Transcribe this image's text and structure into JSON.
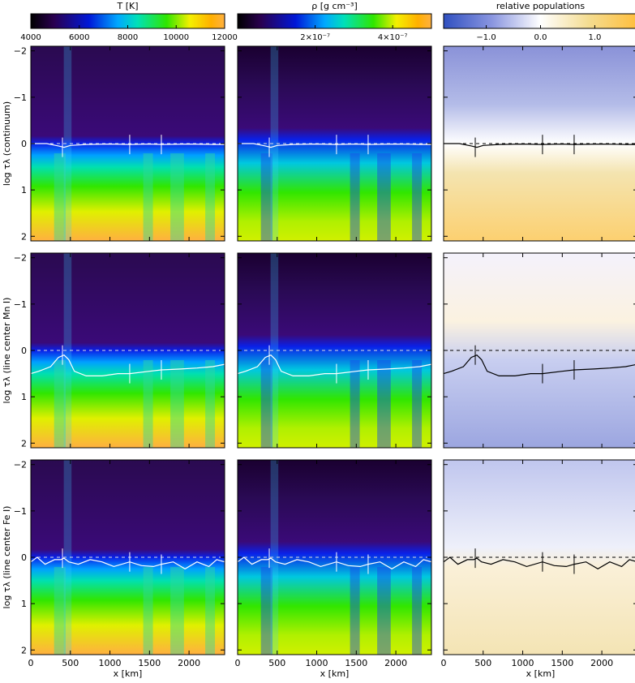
{
  "figure": {
    "colorbars": [
      {
        "label": "T [K]",
        "ticks": [
          "4000",
          "6000",
          "8000",
          "10000",
          "12000"
        ],
        "colormap": "thermal"
      },
      {
        "label": "ρ [g cm⁻³]",
        "ticks": [
          "2×10⁻⁷",
          "4×10⁻⁷"
        ],
        "colormap": "thermal"
      },
      {
        "label": "relative populations",
        "ticks": [
          "−1.0",
          "0.0",
          "1.0"
        ],
        "colormap": "diverging"
      }
    ],
    "row_ylabels": [
      "log τλ (continuum)",
      "log τλ (line center Mn I)",
      "log τλ (line center Fe I)"
    ],
    "xlabel": "x [km]",
    "xticks": [
      "0",
      "500",
      "1000",
      "1500",
      "2000"
    ],
    "yticks": [
      "−2",
      "−1",
      "0",
      "1",
      "2"
    ]
  },
  "chart_data": {
    "type": "heatmap",
    "x_range": [
      0,
      2450
    ],
    "y_range": [
      -2.1,
      2.1
    ],
    "y_inverted": true,
    "marker_x": [
      400,
      1250,
      1650
    ],
    "rows": [
      {
        "ylabel": "log τλ (continuum)",
        "tau_unity_curve": {
          "x": [
            0,
            200,
            350,
            420,
            500,
            700,
            1000,
            1250,
            1500,
            1650,
            2000,
            2300,
            2450
          ],
          "y": [
            0.0,
            0.0,
            0.05,
            0.08,
            0.04,
            0.02,
            0.01,
            0.02,
            0.01,
            0.02,
            0.01,
            0.02,
            0.02
          ]
        }
      },
      {
        "ylabel": "log τλ (line center Mn I)",
        "tau_unity_curve": {
          "x": [
            0,
            100,
            250,
            350,
            420,
            480,
            550,
            700,
            900,
            1100,
            1250,
            1500,
            1650,
            1900,
            2100,
            2300,
            2450
          ],
          "y": [
            0.5,
            0.45,
            0.35,
            0.15,
            0.1,
            0.2,
            0.45,
            0.55,
            0.55,
            0.5,
            0.5,
            0.45,
            0.42,
            0.4,
            0.38,
            0.35,
            0.3
          ]
        }
      },
      {
        "ylabel": "log τλ (line center Fe I)",
        "tau_unity_curve": {
          "x": [
            0,
            80,
            180,
            300,
            380,
            420,
            480,
            600,
            750,
            900,
            1050,
            1250,
            1400,
            1550,
            1650,
            1800,
            1950,
            2100,
            2250,
            2350,
            2450
          ],
          "y": [
            0.1,
            0.0,
            0.15,
            0.05,
            0.05,
            0.02,
            0.1,
            0.15,
            0.05,
            0.1,
            0.2,
            0.1,
            0.18,
            0.2,
            0.15,
            0.1,
            0.25,
            0.1,
            0.2,
            0.05,
            0.1
          ]
        }
      }
    ],
    "columns": [
      {
        "quantity": "T [K]",
        "range": [
          4000,
          12000
        ]
      },
      {
        "quantity": "ρ [g cm⁻³]",
        "range": [
          0,
          5e-07
        ]
      },
      {
        "quantity": "relative populations",
        "range": [
          -1.8,
          1.8
        ]
      }
    ]
  },
  "colors": {
    "overlay_light": "#ffffff",
    "overlay_dark": "#000000",
    "dashed_line": "#dddddd"
  }
}
